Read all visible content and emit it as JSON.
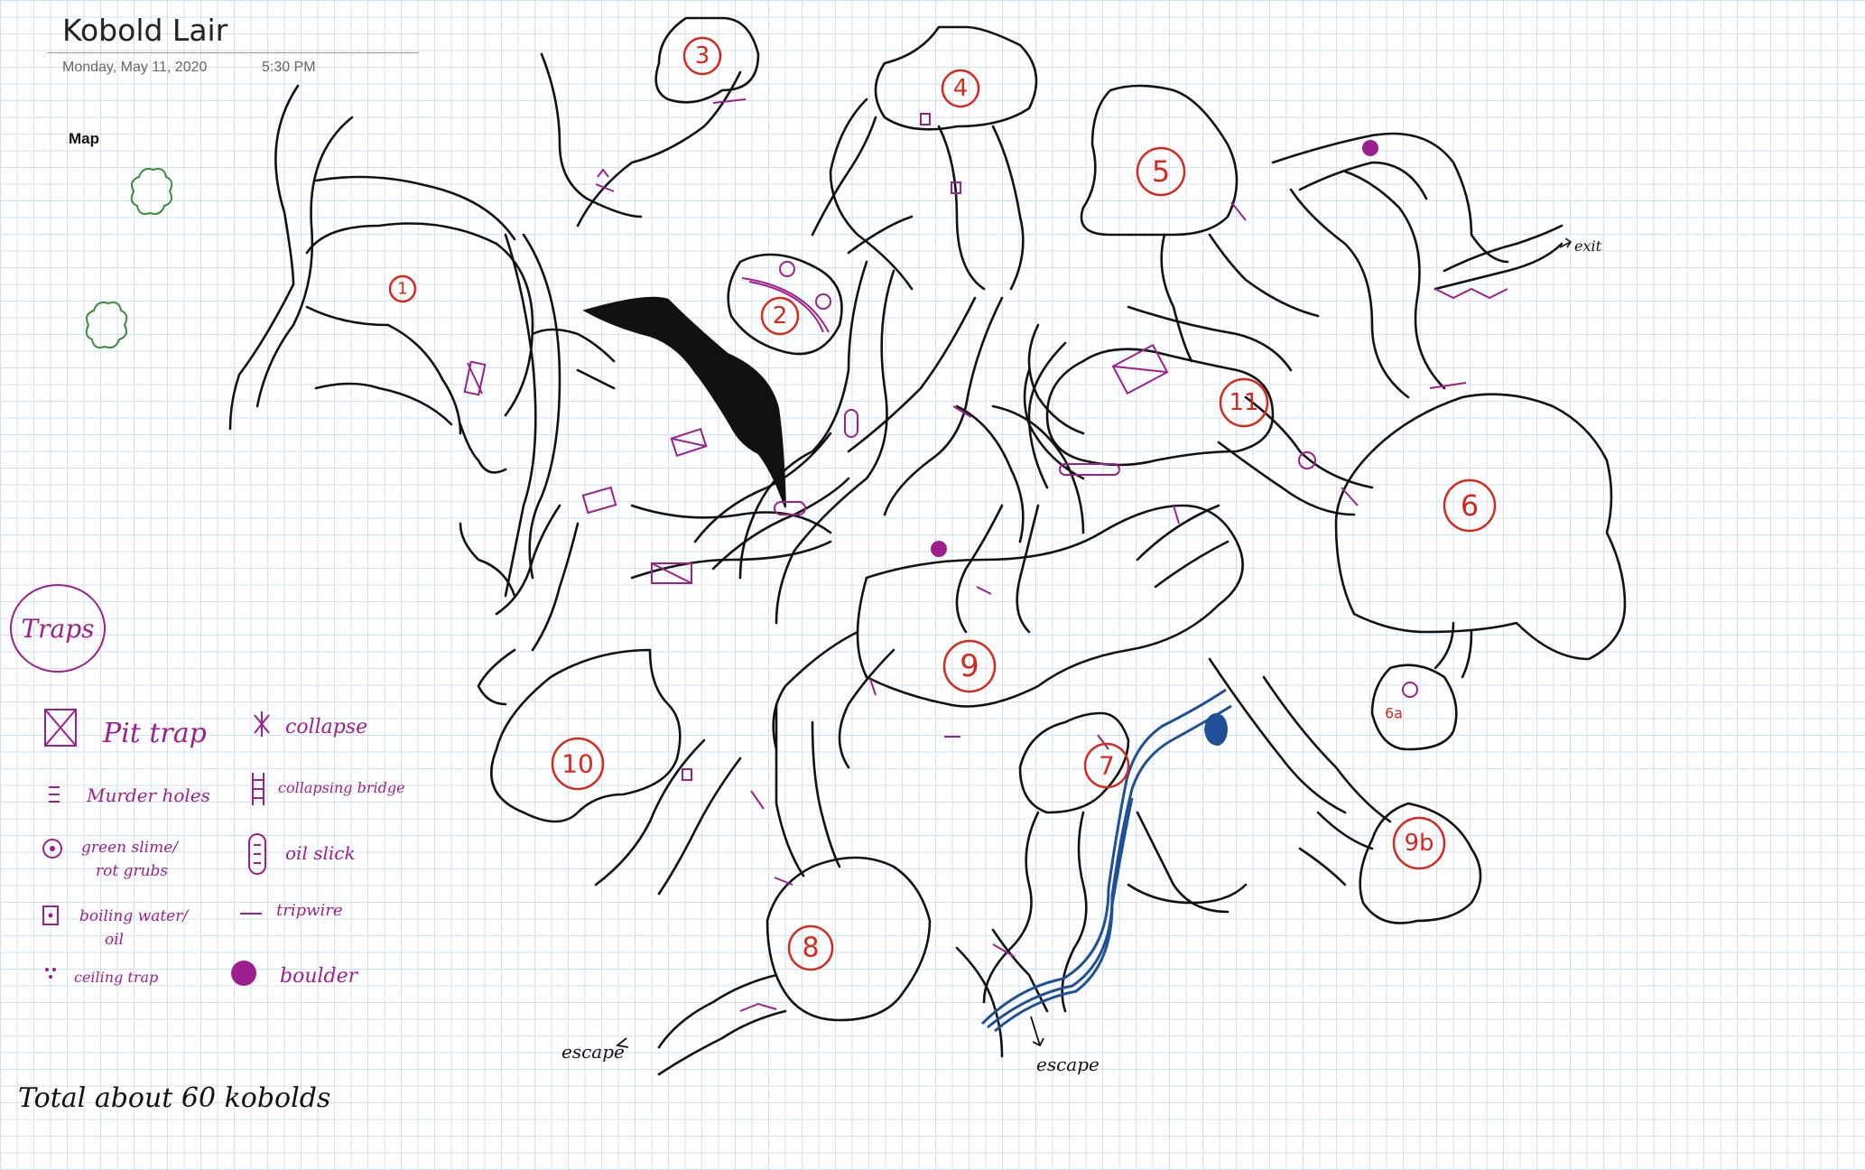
{
  "page": {
    "title": "Kobold Lair",
    "date": "Monday, May 11, 2020",
    "time": "5:30 PM",
    "section_heading": "Map"
  },
  "legend": {
    "heading": "Traps",
    "items": [
      {
        "label": "Pit trap",
        "icon": "pit-trap-icon"
      },
      {
        "label": "Murder holes",
        "icon": "murder-holes-icon"
      },
      {
        "label": "green slime/",
        "label2": "rot grubs",
        "icon": "green-slime-icon"
      },
      {
        "label": "boiling water/",
        "label2": "oil",
        "icon": "boiling-water-icon"
      },
      {
        "label": "ceiling trap",
        "icon": "ceiling-trap-icon"
      },
      {
        "label": "collapse",
        "icon": "collapse-icon"
      },
      {
        "label": "collapsing bridge",
        "icon": "collapsing-bridge-icon"
      },
      {
        "label": "oil slick",
        "icon": "oil-slick-icon"
      },
      {
        "label": "tripwire",
        "icon": "tripwire-icon"
      },
      {
        "label": "boulder",
        "icon": "boulder-icon"
      }
    ]
  },
  "rooms": [
    "1",
    "2",
    "3",
    "4",
    "5",
    "6",
    "6a",
    "7",
    "8",
    "9",
    "9b",
    "10",
    "11"
  ],
  "annotations": {
    "escape_left": "escape",
    "escape_bottom": "escape",
    "exit_right": "exit",
    "total": "Total about 60 kobolds"
  },
  "colors": {
    "ink": "#111111",
    "trap_ink": "#9b1f8c",
    "room_ink": "#d42a1e",
    "water": "#1f4f96",
    "trees": "#3a8a3a",
    "grid": "#cfe0f2"
  }
}
